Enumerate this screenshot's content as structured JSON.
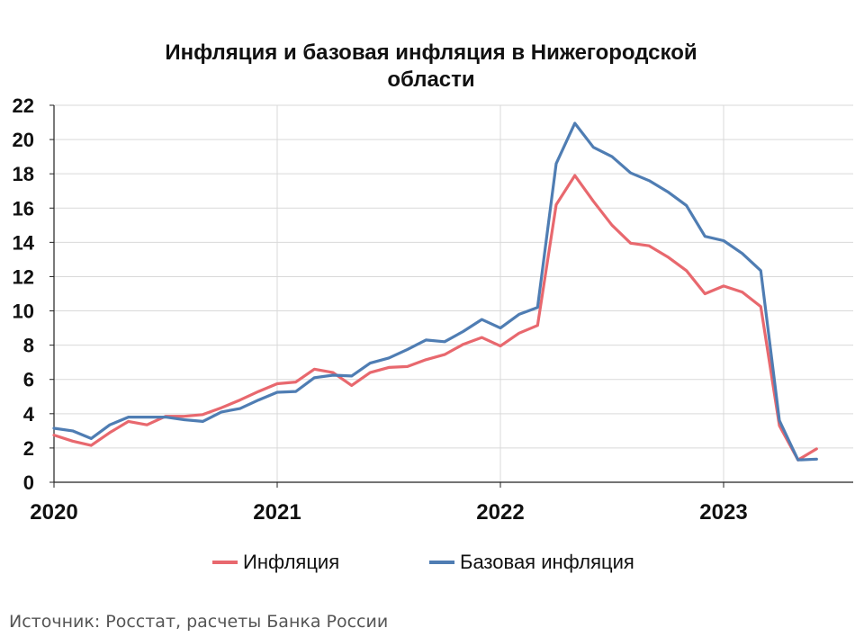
{
  "chart_data": {
    "type": "line",
    "title_lines": [
      "Инфляция и базовая инфляция в Нижегородской",
      "области"
    ],
    "xlabel": "",
    "ylabel": "",
    "ylim": [
      0,
      22
    ],
    "yticks": [
      0,
      2,
      4,
      6,
      8,
      10,
      12,
      14,
      16,
      18,
      20,
      22
    ],
    "x_tick_labels": [
      "2020",
      "2021",
      "2022",
      "2023"
    ],
    "x": [
      "2020-01",
      "2020-02",
      "2020-03",
      "2020-04",
      "2020-05",
      "2020-06",
      "2020-07",
      "2020-08",
      "2020-09",
      "2020-10",
      "2020-11",
      "2020-12",
      "2021-01",
      "2021-02",
      "2021-03",
      "2021-04",
      "2021-05",
      "2021-06",
      "2021-07",
      "2021-08",
      "2021-09",
      "2021-10",
      "2021-11",
      "2021-12",
      "2022-01",
      "2022-02",
      "2022-03",
      "2022-04",
      "2022-05",
      "2022-06",
      "2022-07",
      "2022-08",
      "2022-09",
      "2022-10",
      "2022-11",
      "2022-12",
      "2023-01",
      "2023-02",
      "2023-03",
      "2023-04",
      "2023-05",
      "2023-06"
    ],
    "grid": true,
    "legend_position": "bottom",
    "series": [
      {
        "name": "Инфляция",
        "color": "#e8686e",
        "values": [
          2.75,
          2.4,
          2.15,
          2.9,
          3.55,
          3.35,
          3.85,
          3.85,
          3.95,
          4.35,
          4.8,
          5.3,
          5.75,
          5.85,
          6.6,
          6.4,
          5.65,
          6.4,
          6.7,
          6.75,
          7.15,
          7.45,
          8.05,
          8.45,
          7.95,
          8.7,
          9.15,
          16.2,
          17.9,
          16.4,
          15.0,
          13.95,
          13.8,
          13.15,
          12.35,
          11.0,
          11.45,
          11.1,
          10.25,
          3.3,
          1.3,
          1.95
        ]
      },
      {
        "name": "Базовая инфляция",
        "color": "#4f7db3",
        "values": [
          3.15,
          3.0,
          2.55,
          3.35,
          3.8,
          3.8,
          3.8,
          3.65,
          3.55,
          4.1,
          4.3,
          4.8,
          5.25,
          5.3,
          6.1,
          6.25,
          6.2,
          6.95,
          7.25,
          7.75,
          8.3,
          8.2,
          8.8,
          9.5,
          9.0,
          9.8,
          10.2,
          18.6,
          20.95,
          19.55,
          19.0,
          18.05,
          17.6,
          16.95,
          16.15,
          14.35,
          14.1,
          13.35,
          12.35,
          3.6,
          1.3,
          1.35
        ]
      }
    ]
  },
  "source": "Источник: Росстат, расчеты Банка России"
}
